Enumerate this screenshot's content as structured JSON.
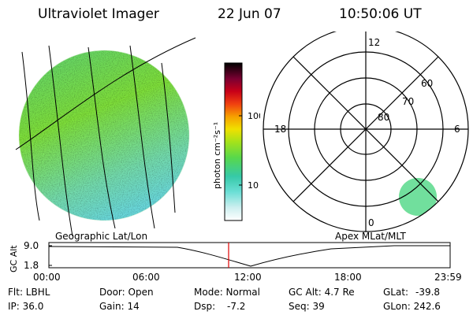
{
  "header": {
    "title": "Ultraviolet Imager",
    "date": "22 Jun 07",
    "time": "10:50:06 UT"
  },
  "colorbar": {
    "unit_label": "photon cm⁻²s⁻¹",
    "ticks": [
      "100",
      "10"
    ]
  },
  "polar_plot": {
    "mlt_labels": [
      "12",
      "18",
      "6",
      "0"
    ],
    "lat_labels": [
      "60",
      "70",
      "80"
    ]
  },
  "labels": {
    "geo": "Geographic Lat/Lon",
    "apex": "Apex MLat/MLT"
  },
  "altitude_plot": {
    "ylabel": "GC Alt",
    "yticks": [
      "9.0",
      "1.8"
    ],
    "xticks": [
      "00:00",
      "06:00",
      "12:00",
      "18:00",
      "23:59"
    ]
  },
  "info": {
    "flt": "Flt: LBHL",
    "ip": "IP: 36.0",
    "door": "Door: Open",
    "gain": "Gain: 14",
    "mode": "Mode: Normal",
    "dsp_label": "Dsp:",
    "dsp_value": "-7.2",
    "gcalt": "GC Alt: 4.7 Re",
    "seq": "Seq: 39",
    "glat_label": "GLat:",
    "glat_value": "-39.8",
    "glon": "GLon: 242.6"
  },
  "colors": {
    "marker": "#e00000",
    "image_base": "#7cdf44",
    "image_cyan": "#6be0d8"
  }
}
